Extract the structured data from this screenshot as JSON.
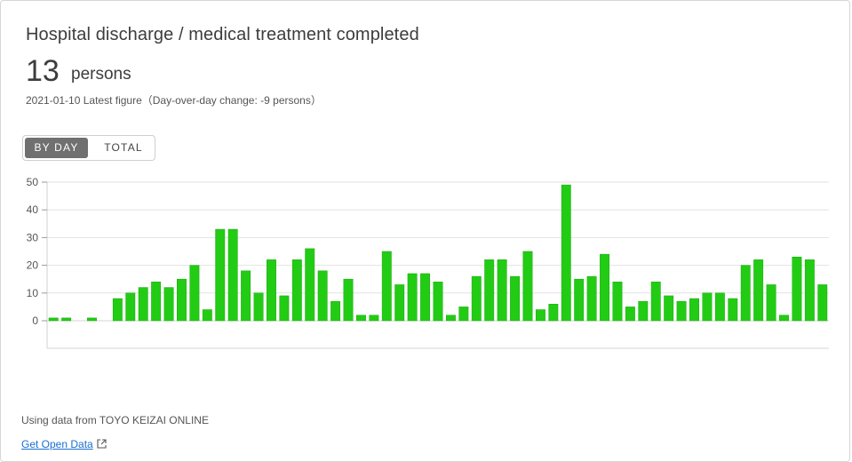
{
  "card": {
    "title": "Hospital discharge / medical treatment completed",
    "value": "13",
    "unit": "persons",
    "update_line": "2021-01-10 Latest figure（Day-over-day change: -9 persons）"
  },
  "toggle": {
    "by_day_label": "BY DAY",
    "total_label": "TOTAL",
    "selected": "BY DAY"
  },
  "footer": {
    "source_text": "Using data from TOYO KEIZAI ONLINE",
    "open_data_label": "Get Open Data"
  },
  "colors": {
    "bar": "#22cc14",
    "bar_stroke": "#1aa80f",
    "grid": "#e2e2e2",
    "axis_text": "#555555"
  },
  "chart_data": {
    "type": "bar",
    "yticks": [
      0,
      10,
      20,
      30,
      40,
      50
    ],
    "ylim": [
      0,
      50
    ],
    "grid": true,
    "values": [
      1,
      1,
      0,
      1,
      0,
      8,
      10,
      12,
      14,
      12,
      15,
      20,
      4,
      33,
      33,
      18,
      10,
      22,
      9,
      22,
      26,
      18,
      7,
      15,
      2,
      2,
      25,
      13,
      17,
      17,
      14,
      2,
      5,
      16,
      22,
      22,
      16,
      25,
      4,
      6,
      49,
      15,
      16,
      24,
      14,
      5,
      7,
      14,
      9,
      7,
      8,
      10,
      10,
      8,
      20,
      22,
      13,
      2,
      23,
      22,
      13
    ]
  }
}
